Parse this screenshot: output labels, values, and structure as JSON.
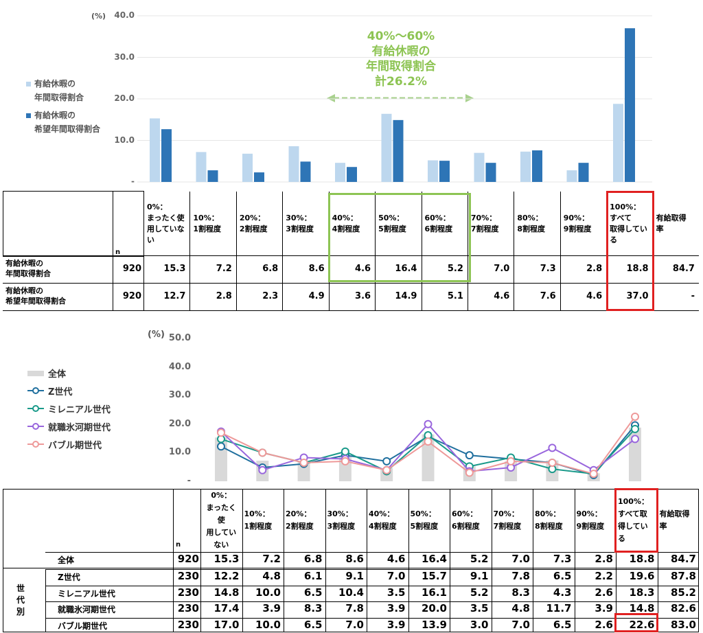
{
  "chart_data": [
    {
      "type": "bar",
      "unit": "(%)",
      "yticks": [
        "40.0",
        "30.0",
        "20.0",
        "10.0",
        "-"
      ],
      "ylim": [
        0,
        40
      ],
      "categories": [
        "0%：まったく使用していない",
        "10%：1割程度",
        "20%：2割程度",
        "30%：3割程度",
        "40%：4割程度",
        "50%：5割程度",
        "60%：6割程度",
        "70%：7割程度",
        "80%：8割程度",
        "90%：9割程度",
        "100%：すべて取得している"
      ],
      "series": [
        {
          "name": "有給休暇の年間取得割合",
          "color": "#bdd7ee",
          "values": [
            15.3,
            7.2,
            6.8,
            8.6,
            4.6,
            16.4,
            5.2,
            7.0,
            7.3,
            2.8,
            18.8
          ]
        },
        {
          "name": "有給休暇の希望年間取得割合",
          "color": "#2e75b6",
          "values": [
            12.7,
            2.8,
            2.3,
            4.9,
            3.6,
            14.9,
            5.1,
            4.6,
            7.6,
            4.6,
            37.0
          ]
        }
      ],
      "legend": [
        {
          "line1": "有給休暇の",
          "line2": "年間取得割合"
        },
        {
          "line1": "有給休暇の",
          "line2": "希望年間取得割合"
        }
      ],
      "annotation": [
        "40%～60%",
        "有給休暇の",
        "年間取得割合",
        "計26.2%"
      ]
    },
    {
      "type": "line",
      "unit": "(%)",
      "yticks": [
        "50.0",
        "40.0",
        "30.0",
        "20.0",
        "10.0",
        "-"
      ],
      "ylim": [
        0,
        50
      ],
      "bars": {
        "name": "全体",
        "color": "#d9d9d9",
        "values": [
          15.3,
          7.2,
          6.8,
          8.6,
          4.6,
          16.4,
          5.2,
          7.0,
          7.3,
          2.8,
          18.8
        ]
      },
      "series": [
        {
          "name": "Z世代",
          "color": "#1f6f9e",
          "values": [
            12.2,
            4.8,
            6.1,
            9.1,
            7.0,
            15.7,
            9.1,
            7.8,
            6.5,
            2.2,
            19.6
          ]
        },
        {
          "name": "ミレニアル世代",
          "color": "#1a9a8a",
          "values": [
            14.8,
            10.0,
            6.5,
            10.4,
            3.5,
            16.1,
            5.2,
            8.3,
            4.3,
            2.6,
            18.3
          ]
        },
        {
          "name": "就職氷河期世代",
          "color": "#9966dd",
          "values": [
            17.4,
            3.9,
            8.3,
            7.8,
            3.9,
            20.0,
            3.5,
            4.8,
            11.7,
            3.9,
            14.8
          ]
        },
        {
          "name": "バブル期世代",
          "color": "#ee9999",
          "values": [
            17.0,
            10.0,
            6.5,
            7.0,
            3.9,
            13.9,
            3.0,
            7.0,
            6.5,
            2.6,
            22.6
          ]
        }
      ]
    }
  ],
  "table1": {
    "n_label": "n",
    "headers": [
      [
        "0%：",
        "まったく使",
        "用していな",
        "い"
      ],
      [
        "10%：",
        "1割程度"
      ],
      [
        "20%：",
        "2割程度"
      ],
      [
        "30%：",
        "3割程度"
      ],
      [
        "40%：",
        "4割程度"
      ],
      [
        "50%：",
        "5割程度"
      ],
      [
        "60%：",
        "6割程度"
      ],
      [
        "70%：",
        "7割程度"
      ],
      [
        "80%：",
        "8割程度"
      ],
      [
        "90%：",
        "9割程度"
      ],
      [
        "100%：",
        "すべて",
        "取得してい",
        "る"
      ],
      [
        "有給取得",
        "率"
      ]
    ],
    "rows": [
      {
        "label1": "有給休暇の",
        "label2": "年間取得割合",
        "n": "920",
        "values": [
          "15.3",
          "7.2",
          "6.8",
          "8.6",
          "4.6",
          "16.4",
          "5.2",
          "7.0",
          "7.3",
          "2.8",
          "18.8",
          "84.7"
        ]
      },
      {
        "label1": "有給休暇の",
        "label2": "希望年間取得割合",
        "n": "920",
        "values": [
          "12.7",
          "2.8",
          "2.3",
          "4.9",
          "3.6",
          "14.9",
          "5.1",
          "4.6",
          "7.6",
          "4.6",
          "37.0",
          "-"
        ]
      }
    ]
  },
  "table2": {
    "n_label": "n",
    "group_label": [
      "世",
      "代",
      "別"
    ],
    "headers": [
      [
        "0%：",
        "まったく使",
        "用してい",
        "ない"
      ],
      [
        "10%：",
        "1割程度"
      ],
      [
        "20%：",
        "2割程度"
      ],
      [
        "30%：",
        "3割程度"
      ],
      [
        "40%：",
        "4割程度"
      ],
      [
        "50%：",
        "5割程度"
      ],
      [
        "60%：",
        "6割程度"
      ],
      [
        "70%：",
        "7割程度"
      ],
      [
        "80%：",
        "8割程度"
      ],
      [
        "90%：",
        "9割程度"
      ],
      [
        "100%：",
        "すべて取",
        "得してい",
        "る"
      ],
      [
        "有給取得",
        "率"
      ]
    ],
    "total": {
      "label": "全体",
      "n": "920",
      "values": [
        "15.3",
        "7.2",
        "6.8",
        "8.6",
        "4.6",
        "16.4",
        "5.2",
        "7.0",
        "7.3",
        "2.8",
        "18.8",
        "84.7"
      ]
    },
    "rows": [
      {
        "label": "Z世代",
        "n": "230",
        "values": [
          "12.2",
          "4.8",
          "6.1",
          "9.1",
          "7.0",
          "15.7",
          "9.1",
          "7.8",
          "6.5",
          "2.2",
          "19.6",
          "87.8"
        ]
      },
      {
        "label": "ミレニアル世代",
        "n": "230",
        "values": [
          "14.8",
          "10.0",
          "6.5",
          "10.4",
          "3.5",
          "16.1",
          "5.2",
          "8.3",
          "4.3",
          "2.6",
          "18.3",
          "85.2"
        ]
      },
      {
        "label": "就職氷河期世代",
        "n": "230",
        "values": [
          "17.4",
          "3.9",
          "8.3",
          "7.8",
          "3.9",
          "20.0",
          "3.5",
          "4.8",
          "11.7",
          "3.9",
          "14.8",
          "82.6"
        ]
      },
      {
        "label": "バブル期世代",
        "n": "230",
        "values": [
          "17.0",
          "10.0",
          "6.5",
          "7.0",
          "3.9",
          "13.9",
          "3.0",
          "7.0",
          "6.5",
          "2.6",
          "22.6",
          "83.0"
        ]
      }
    ]
  }
}
